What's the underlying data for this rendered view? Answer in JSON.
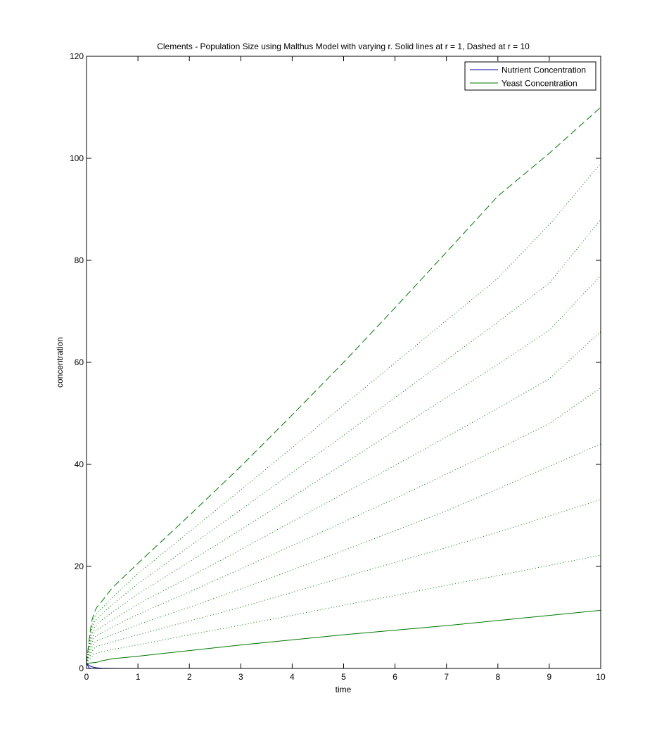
{
  "chart_data": {
    "type": "line",
    "title": "Clements - Population Size using Malthus Model with varying r. Solid lines at r = 1, Dashed at r = 10",
    "xlabel": "time",
    "ylabel": "concentration",
    "xlim": [
      0,
      10
    ],
    "ylim": [
      0,
      120
    ],
    "x_ticks": [
      "0",
      "1",
      "2",
      "3",
      "4",
      "5",
      "6",
      "7",
      "8",
      "9",
      "10"
    ],
    "y_ticks": [
      "0",
      "20",
      "40",
      "60",
      "80",
      "100",
      "120"
    ],
    "grid": false,
    "legend_position": "top-right",
    "legend": [
      {
        "label": "Nutrient Concentration",
        "color": "#0000aa"
      },
      {
        "label": "Yeast Concentration",
        "color": "#007700"
      }
    ],
    "x": [
      0,
      0.05,
      0.1,
      0.15,
      0.2,
      0.3,
      0.5,
      1,
      2,
      3,
      4,
      5,
      6,
      7,
      8,
      9,
      10
    ],
    "series": [
      {
        "r": 1,
        "style": "solid",
        "group": "yeast",
        "values": [
          1.0,
          1.05,
          1.1,
          1.16,
          1.2,
          1.5,
          1.9,
          2.4,
          3.5,
          4.6,
          5.6,
          6.6,
          7.5,
          8.4,
          9.4,
          10.4,
          11.4
        ]
      },
      {
        "r": 2,
        "style": "dotted",
        "group": "yeast",
        "values": [
          1.0,
          1.6,
          2.2,
          2.8,
          3.0,
          3.3,
          3.7,
          4.6,
          6.6,
          8.5,
          10.4,
          12.4,
          14.3,
          16.3,
          18.2,
          20.2,
          22.2
        ]
      },
      {
        "r": 3,
        "style": "dotted",
        "group": "yeast",
        "values": [
          1.0,
          2.1,
          3.2,
          4.0,
          4.3,
          4.6,
          5.2,
          6.6,
          9.3,
          12.0,
          14.9,
          17.9,
          20.8,
          23.7,
          26.7,
          29.9,
          33.1
        ]
      },
      {
        "r": 4,
        "style": "dotted",
        "group": "yeast",
        "values": [
          1.0,
          2.6,
          4.0,
          5.0,
          5.4,
          5.8,
          6.6,
          8.6,
          12.0,
          15.6,
          19.3,
          23.1,
          27.0,
          30.9,
          35.2,
          39.6,
          44.0
        ]
      },
      {
        "r": 5,
        "style": "dotted",
        "group": "yeast",
        "values": [
          1.0,
          3.1,
          4.9,
          6.0,
          6.5,
          7.0,
          8.1,
          10.6,
          15.0,
          19.5,
          24.1,
          28.7,
          33.3,
          38.1,
          43.0,
          48.0,
          55.0
        ]
      },
      {
        "r": 6,
        "style": "dotted",
        "group": "yeast",
        "values": [
          1.0,
          3.6,
          5.7,
          7.0,
          7.6,
          8.2,
          9.5,
          12.6,
          17.9,
          23.3,
          28.8,
          34.3,
          39.8,
          45.4,
          51.0,
          56.8,
          66.0
        ]
      },
      {
        "r": 7,
        "style": "dotted",
        "group": "yeast",
        "values": [
          1.0,
          4.1,
          6.6,
          8.0,
          8.7,
          9.5,
          11.0,
          14.6,
          20.9,
          27.2,
          33.6,
          40.1,
          46.6,
          53.1,
          59.6,
          66.3,
          77.0
        ]
      },
      {
        "r": 8,
        "style": "dotted",
        "group": "yeast",
        "values": [
          1.0,
          4.6,
          7.5,
          9.0,
          9.8,
          10.7,
          12.5,
          16.6,
          23.9,
          31.1,
          38.4,
          45.7,
          53.1,
          60.5,
          67.9,
          75.5,
          88.0
        ]
      },
      {
        "r": 9,
        "style": "dotted",
        "group": "yeast",
        "values": [
          1.0,
          5.1,
          8.3,
          10.0,
          10.8,
          11.8,
          13.9,
          18.6,
          26.8,
          35.0,
          43.3,
          51.6,
          59.9,
          68.2,
          76.5,
          87.0,
          99.0
        ]
      },
      {
        "r": 10,
        "style": "dashed",
        "group": "yeast",
        "values": [
          1.0,
          5.6,
          9.2,
          11.0,
          12.0,
          13.2,
          15.8,
          20.6,
          30.0,
          39.6,
          49.7,
          60.0,
          70.7,
          81.6,
          92.6,
          101.0,
          110.0
        ]
      },
      {
        "r": 1,
        "style": "solid",
        "group": "nutrient",
        "values": [
          1.0,
          0.6,
          0.35,
          0.2,
          0.12,
          0.05,
          0.01,
          0,
          0,
          0,
          0,
          0,
          0,
          0,
          0,
          0,
          0
        ]
      },
      {
        "r": 10,
        "style": "dashed",
        "group": "nutrient",
        "values": [
          1.0,
          0.1,
          0.02,
          0.005,
          0,
          0,
          0,
          0,
          0,
          0,
          0,
          0,
          0,
          0,
          0,
          0,
          0
        ]
      }
    ]
  }
}
